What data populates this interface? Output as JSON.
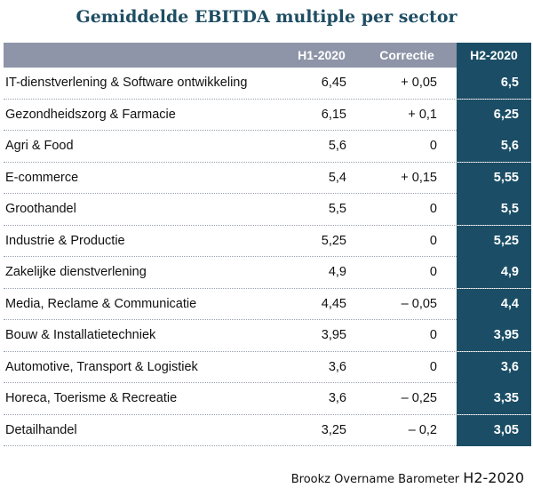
{
  "title": "Gemiddelde EBITDA multiple per sector",
  "header": {
    "sector": "",
    "h1": "H1-2020",
    "correctie": "Correctie",
    "h2": "H2-2020"
  },
  "source": {
    "text": "Brookz Overname Barometer",
    "period": "H2-2020"
  },
  "colors": {
    "header_bg": "#8e95a8",
    "h2_bg": "#1b4e66",
    "title": "#1e4d63"
  },
  "chart_data": {
    "type": "table",
    "title": "Gemiddelde EBITDA multiple per sector",
    "columns": [
      "",
      "H1-2020",
      "Correctie",
      "H2-2020"
    ],
    "rows": [
      {
        "sector": "IT-dienstverlening & Software ontwikkeling",
        "h1": "6,45",
        "correctie": "+ 0,05",
        "h2": "6,5"
      },
      {
        "sector": "Gezondheidszorg & Farmacie",
        "h1": "6,15",
        "correctie": "+ 0,1",
        "h2": "6,25"
      },
      {
        "sector": "Agri & Food",
        "h1": "5,6",
        "correctie": "0",
        "h2": "5,6"
      },
      {
        "sector": "E-commerce",
        "h1": "5,4",
        "correctie": "+ 0,15",
        "h2": "5,55"
      },
      {
        "sector": "Groothandel",
        "h1": "5,5",
        "correctie": "0",
        "h2": "5,5"
      },
      {
        "sector": "Industrie & Productie",
        "h1": "5,25",
        "correctie": "0",
        "h2": "5,25"
      },
      {
        "sector": "Zakelijke dienstverlening",
        "h1": "4,9",
        "correctie": "0",
        "h2": "4,9"
      },
      {
        "sector": "Media, Reclame & Communicatie",
        "h1": "4,45",
        "correctie": "– 0,05",
        "h2": "4,4"
      },
      {
        "sector": "Bouw & Installatietechniek",
        "h1": "3,95",
        "correctie": "0",
        "h2": "3,95"
      },
      {
        "sector": "Automotive, Transport & Logistiek",
        "h1": "3,6",
        "correctie": "0",
        "h2": "3,6"
      },
      {
        "sector": "Horeca, Toerisme & Recreatie",
        "h1": "3,6",
        "correctie": "– 0,25",
        "h2": "3,35"
      },
      {
        "sector": "Detailhandel",
        "h1": "3,25",
        "correctie": "– 0,2",
        "h2": "3,05"
      }
    ]
  }
}
